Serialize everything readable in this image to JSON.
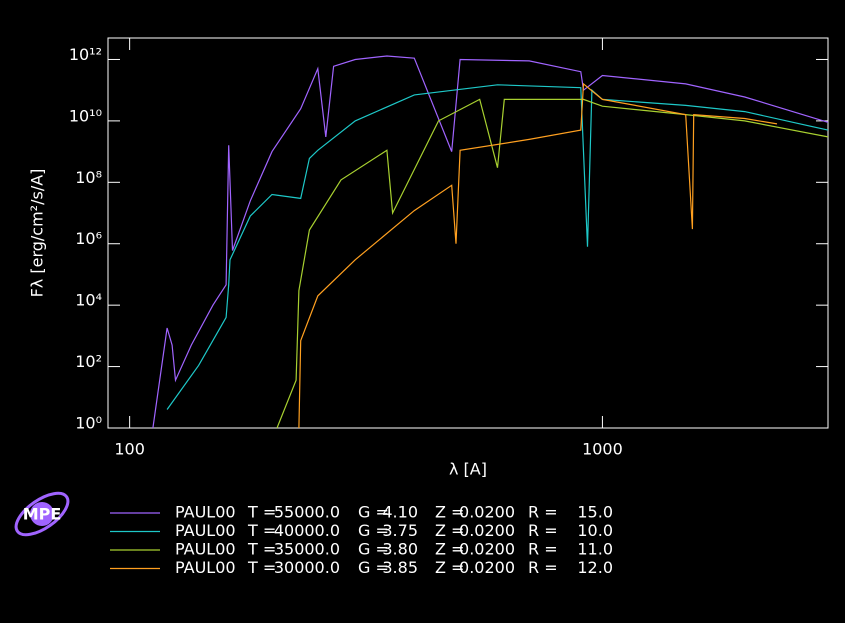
{
  "chart_data": {
    "type": "line",
    "x_label": "λ [A]",
    "y_label": "Fλ [erg/cm²/s/A]",
    "xlim": [
      90,
      3000
    ],
    "ylim": [
      1,
      5000000000000.0
    ],
    "log_x": true,
    "log_y": true,
    "xticks": [
      100,
      1000
    ],
    "yticks": [
      {
        "value": 1,
        "label": "10⁰"
      },
      {
        "value": 100.0,
        "label": "10²"
      },
      {
        "value": 10000.0,
        "label": "10⁴"
      },
      {
        "value": 1000000.0,
        "label": "10⁶"
      },
      {
        "value": 100000000.0,
        "label": "10⁸"
      },
      {
        "value": 10000000000.0,
        "label": "10¹⁰"
      },
      {
        "value": 1000000000000.0,
        "label": "10¹²"
      }
    ],
    "series": [
      {
        "name": "PAUL00",
        "color": "#a064ff",
        "params": [
          "T =",
          "55000.0",
          "G =",
          "4.10",
          "Z =",
          "0.0200",
          "R =",
          "15.0"
        ],
        "x": [
          112,
          120,
          123,
          125,
          135,
          150,
          160,
          162,
          165,
          180,
          200,
          230,
          250,
          260,
          270,
          300,
          350,
          400,
          480,
          500,
          700,
          900,
          912,
          1000,
          1500,
          2000,
          3000
        ],
        "values": [
          1,
          1800.0,
          500.0,
          36.0,
          500.0,
          10000.0,
          46000.0,
          1600000000.0,
          600000.0,
          25000000.0,
          1000000000.0,
          25000000000.0,
          500000000000.0,
          3000000000.0,
          600000000000.0,
          1000000000000.0,
          1300000000000.0,
          1100000000000.0,
          1000000000.0,
          1000000000000.0,
          900000000000.0,
          400000000000.0,
          100000000000.0,
          300000000000.0,
          160000000000.0,
          60000000000.0,
          9000000000.0
        ]
      },
      {
        "name": "PAUL00",
        "color": "#1ec8c8",
        "params": [
          "T =",
          "40000.0",
          "G =",
          "3.75",
          "Z =",
          "0.0200",
          "R =",
          "10.0"
        ],
        "x": [
          120,
          140,
          160,
          162,
          163,
          180,
          200,
          230,
          240,
          250,
          300,
          400,
          600,
          900,
          930,
          950,
          1000,
          1500,
          2000,
          3000
        ],
        "values": [
          4,
          110.0,
          4000.0,
          46000.0,
          300000.0,
          8000000.0,
          40000000.0,
          30000000.0,
          600000000.0,
          1100000000.0,
          10000000000.0,
          70000000000.0,
          150000000000.0,
          120000000000.0,
          800000.0,
          100000000000.0,
          50000000000.0,
          32000000000.0,
          20000000000.0,
          5000000000.0
        ]
      },
      {
        "name": "PAUL00",
        "color": "#a8d030",
        "params": [
          "T =",
          "35000.0",
          "G =",
          "3.80",
          "Z =",
          "0.0200",
          "R =",
          "11.0"
        ],
        "x": [
          205,
          225,
          228,
          240,
          280,
          350,
          360,
          450,
          550,
          600,
          620,
          800,
          912,
          1000,
          1500,
          2000,
          3000
        ],
        "values": [
          1,
          36.0,
          30000.0,
          2800000.0,
          120000000.0,
          1100000000.0,
          10000000.0,
          10000000000.0,
          50000000000.0,
          300000000.0,
          50000000000.0,
          50000000000.0,
          50000000000.0,
          30000000000.0,
          16000000000.0,
          10000000000.0,
          3000000000.0
        ]
      },
      {
        "name": "PAUL00",
        "color": "#ffa020",
        "params": [
          "T =",
          "30000.0",
          "G =",
          "3.85",
          "Z =",
          "0.0200",
          "R =",
          "12.0"
        ],
        "x": [
          228,
          230,
          250,
          300,
          400,
          480,
          490,
          500,
          700,
          900,
          912,
          1000,
          1500,
          1550,
          1560,
          2000,
          2340
        ],
        "values": [
          1,
          700.0,
          20000.0,
          300000.0,
          12000000.0,
          80000000.0,
          1000000.0,
          1100000000.0,
          2500000000.0,
          5000000000.0,
          160000000000.0,
          50000000000.0,
          16000000000.0,
          3000000.0,
          16000000000.0,
          12000000000.0,
          8000000000.0
        ]
      }
    ]
  },
  "logo": "MPE"
}
